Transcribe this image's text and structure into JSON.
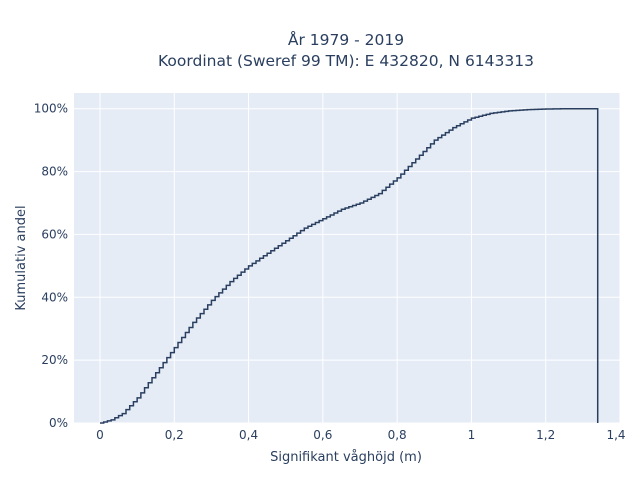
{
  "chart_data": {
    "type": "line",
    "line_shape": "step",
    "title_line1": "År 1979 - 2019",
    "title_line2": "Koordinat (Sweref 99 TM): E 432820, N 6143313",
    "xlabel": "Signifikant våghöjd (m)",
    "ylabel": "Kumulativ andel",
    "xlim": [
      -0.07,
      1.4
    ],
    "ylim": [
      0,
      1.05
    ],
    "x_ticks": [
      0,
      0.2,
      0.4,
      0.6,
      0.8,
      1.0,
      1.2,
      1.4
    ],
    "x_tick_labels": [
      "0",
      "0,2",
      "0,4",
      "0,6",
      "0,8",
      "1",
      "1,2",
      "1,4"
    ],
    "y_ticks": [
      0,
      0.2,
      0.4,
      0.6,
      0.8,
      1.0
    ],
    "y_tick_labels": [
      "0%",
      "20%",
      "40%",
      "60%",
      "80%",
      "100%"
    ],
    "grid": true,
    "background": "#e5ecf6",
    "line_color": "#2a3f5f",
    "x": [
      0.0,
      0.03,
      0.06,
      0.1,
      0.15,
      0.2,
      0.25,
      0.3,
      0.35,
      0.4,
      0.45,
      0.5,
      0.55,
      0.6,
      0.65,
      0.7,
      0.75,
      0.8,
      0.85,
      0.9,
      0.95,
      1.0,
      1.05,
      1.1,
      1.15,
      1.2,
      1.25,
      1.3,
      1.34
    ],
    "y": [
      0.0,
      0.01,
      0.03,
      0.08,
      0.16,
      0.24,
      0.32,
      0.39,
      0.45,
      0.5,
      0.54,
      0.58,
      0.62,
      0.65,
      0.68,
      0.7,
      0.73,
      0.78,
      0.84,
      0.9,
      0.94,
      0.97,
      0.985,
      0.993,
      0.997,
      0.999,
      1.0,
      1.0,
      1.0
    ],
    "end_drop_x": 1.34
  }
}
